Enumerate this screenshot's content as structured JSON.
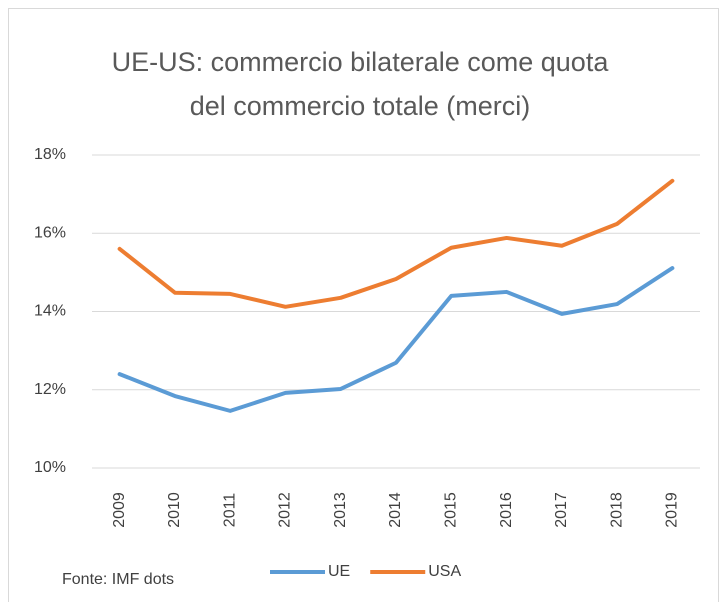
{
  "chart_data": {
    "type": "line",
    "title": "UE-US: commercio bilaterale come quota del commercio totale (merci)",
    "categories": [
      "2009",
      "2010",
      "2011",
      "2012",
      "2013",
      "2014",
      "2015",
      "2016",
      "2017",
      "2018",
      "2019"
    ],
    "series": [
      {
        "name": "UE",
        "color": "#5b9bd5",
        "values": [
          12.4,
          11.84,
          11.46,
          11.92,
          12.02,
          12.69,
          14.4,
          14.5,
          13.94,
          14.19,
          15.11
        ]
      },
      {
        "name": "USA",
        "color": "#ed7d31",
        "values": [
          15.6,
          14.48,
          14.45,
          14.12,
          14.35,
          14.83,
          15.63,
          15.88,
          15.68,
          16.24,
          17.34
        ]
      }
    ],
    "ylim": [
      10,
      18
    ],
    "yticks": [
      {
        "value": 10,
        "label": "10%"
      },
      {
        "value": 12,
        "label": "12%"
      },
      {
        "value": 14,
        "label": "14%"
      },
      {
        "value": 16,
        "label": "16%"
      },
      {
        "value": 18,
        "label": "18%"
      }
    ],
    "grid": true,
    "legend": "bottom",
    "annotation": "Fonte: IMF dots"
  }
}
